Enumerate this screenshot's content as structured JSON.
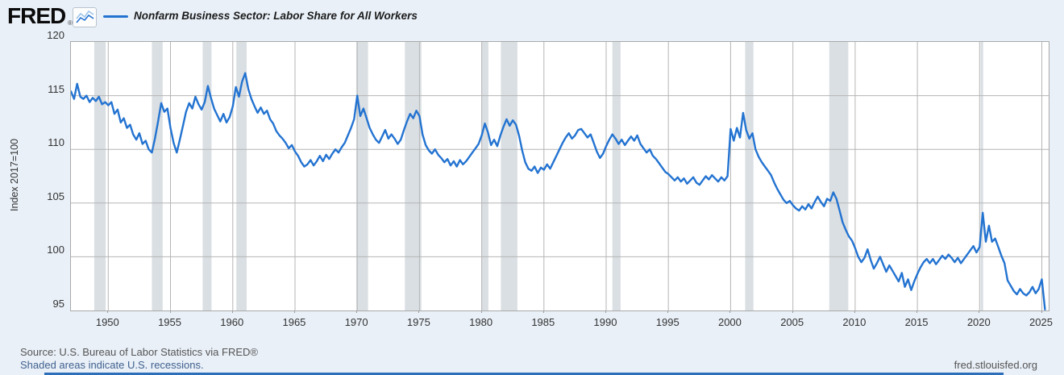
{
  "header": {
    "logo": "FRED",
    "registered": "®",
    "series_label": "Nonfarm Business Sector: Labor Share for All Workers"
  },
  "y_axis": {
    "label": "Index 2017=100",
    "ticks": [
      120,
      115,
      110,
      105,
      100,
      95
    ]
  },
  "x_axis": {
    "ticks": [
      1950,
      1955,
      1960,
      1965,
      1970,
      1975,
      1980,
      1985,
      1990,
      1995,
      2000,
      2005,
      2010,
      2015,
      2020,
      2025
    ]
  },
  "footer": {
    "source": "Source: U.S. Bureau of Labor Statistics via FRED®",
    "recession_note": "Shaded areas indicate U.S. recessions.",
    "site": "fred.stlouisfed.org"
  },
  "colors": {
    "line": "#2373d1",
    "line_light": "#9cc4e8",
    "background": "#e9f0f8",
    "plot_bg": "#ffffff",
    "grid": "#b5b5b5",
    "border": "#a9a9a9",
    "recession": "#dadfe3"
  },
  "chart_data": {
    "type": "line",
    "title": "Nonfarm Business Sector: Labor Share for All Workers",
    "xlabel": "",
    "ylabel": "Index 2017=100",
    "legend_position": "top",
    "grid": true,
    "x_start": 1947.0,
    "x_step": 0.25,
    "xlim": [
      1947.0,
      2025.55
    ],
    "ylim": [
      95,
      120
    ],
    "x_ticks": [
      1950,
      1955,
      1960,
      1965,
      1970,
      1975,
      1980,
      1985,
      1990,
      1995,
      2000,
      2005,
      2010,
      2015,
      2020,
      2025
    ],
    "y_ticks": [
      120,
      115,
      110,
      105,
      100,
      95
    ],
    "y_grid": [
      115,
      110,
      105,
      100
    ],
    "recessions": [
      [
        1948.87,
        1949.79
      ],
      [
        1953.5,
        1954.37
      ],
      [
        1957.58,
        1958.29
      ],
      [
        1960.29,
        1961.12
      ],
      [
        1969.92,
        1970.87
      ],
      [
        1973.83,
        1975.16
      ],
      [
        1980.0,
        1980.54
      ],
      [
        1981.54,
        1982.87
      ],
      [
        1990.5,
        1991.16
      ],
      [
        2001.16,
        2001.83
      ],
      [
        2007.92,
        2009.45
      ],
      [
        2020.08,
        2020.29
      ]
    ],
    "series": [
      {
        "name": "Nonfarm Business Sector: Labor Share for All Workers",
        "values": [
          115.4,
          114.7,
          116.1,
          114.9,
          114.7,
          115.0,
          114.4,
          114.8,
          114.5,
          114.9,
          114.2,
          114.4,
          114.1,
          114.4,
          113.3,
          113.7,
          112.5,
          112.9,
          112.0,
          112.3,
          111.4,
          110.9,
          111.5,
          110.5,
          110.8,
          110.0,
          109.7,
          111.0,
          112.6,
          114.3,
          113.5,
          113.8,
          112.0,
          110.6,
          109.7,
          110.9,
          112.2,
          113.5,
          114.3,
          113.8,
          114.9,
          114.2,
          113.7,
          114.4,
          115.9,
          114.8,
          113.8,
          113.2,
          112.6,
          113.3,
          112.5,
          113.0,
          114.0,
          115.8,
          114.9,
          116.3,
          117.1,
          115.6,
          114.7,
          114.0,
          113.4,
          113.9,
          113.3,
          113.6,
          112.8,
          112.4,
          111.7,
          111.3,
          111.0,
          110.6,
          110.1,
          110.4,
          109.8,
          109.4,
          108.8,
          108.4,
          108.6,
          109.0,
          108.5,
          108.9,
          109.4,
          108.9,
          109.5,
          109.1,
          109.6,
          110.0,
          109.7,
          110.2,
          110.6,
          111.3,
          112.0,
          112.8,
          115.0,
          113.1,
          113.8,
          112.9,
          112.0,
          111.4,
          110.9,
          110.6,
          111.2,
          111.8,
          111.0,
          111.4,
          111.0,
          110.5,
          110.9,
          111.8,
          112.6,
          113.3,
          112.9,
          113.6,
          113.1,
          111.4,
          110.4,
          109.9,
          109.6,
          110.0,
          109.5,
          109.2,
          108.8,
          109.1,
          108.5,
          108.9,
          108.4,
          109.0,
          108.6,
          108.9,
          109.3,
          109.7,
          110.1,
          110.5,
          111.3,
          112.4,
          111.6,
          110.4,
          110.9,
          110.3,
          111.3,
          112.1,
          112.8,
          112.2,
          112.7,
          112.3,
          111.3,
          109.9,
          108.8,
          108.2,
          108.0,
          108.4,
          107.8,
          108.3,
          108.1,
          108.6,
          108.2,
          108.8,
          109.4,
          110.0,
          110.6,
          111.1,
          111.5,
          111.0,
          111.3,
          111.8,
          111.9,
          111.5,
          111.1,
          111.4,
          110.6,
          109.8,
          109.2,
          109.6,
          110.3,
          110.9,
          111.4,
          111.0,
          110.5,
          110.9,
          110.4,
          110.8,
          111.2,
          110.8,
          111.3,
          110.5,
          110.1,
          109.7,
          110.0,
          109.4,
          109.1,
          108.7,
          108.3,
          107.9,
          107.7,
          107.4,
          107.1,
          107.4,
          107.0,
          107.3,
          106.8,
          107.1,
          107.4,
          106.9,
          106.7,
          107.1,
          107.5,
          107.2,
          107.6,
          107.3,
          107.0,
          107.4,
          107.1,
          107.5,
          111.9,
          110.8,
          112.0,
          111.1,
          113.4,
          111.8,
          111.0,
          111.5,
          110.0,
          109.3,
          108.8,
          108.4,
          108.0,
          107.6,
          106.9,
          106.3,
          105.8,
          105.3,
          105.0,
          105.2,
          104.8,
          104.5,
          104.3,
          104.7,
          104.4,
          104.9,
          104.5,
          105.1,
          105.6,
          105.1,
          104.7,
          105.4,
          105.2,
          106.0,
          105.4,
          104.3,
          103.2,
          102.5,
          101.9,
          101.5,
          100.8,
          100.0,
          99.5,
          99.9,
          100.7,
          99.7,
          98.9,
          99.4,
          100.0,
          99.3,
          98.6,
          99.2,
          98.7,
          98.2,
          97.7,
          98.5,
          97.2,
          97.9,
          96.9,
          97.7,
          98.4,
          99.0,
          99.5,
          99.8,
          99.4,
          99.8,
          99.3,
          99.7,
          100.1,
          99.8,
          100.2,
          99.9,
          99.5,
          99.9,
          99.4,
          99.8,
          100.2,
          100.6,
          101.0,
          100.4,
          100.9,
          104.1,
          101.4,
          102.9,
          101.4,
          101.7,
          100.9,
          100.1,
          99.4,
          97.8,
          97.3,
          96.8,
          96.5,
          97.0,
          96.6,
          96.4,
          96.7,
          97.2,
          96.6,
          97.0,
          97.9,
          95.1
        ]
      }
    ]
  }
}
